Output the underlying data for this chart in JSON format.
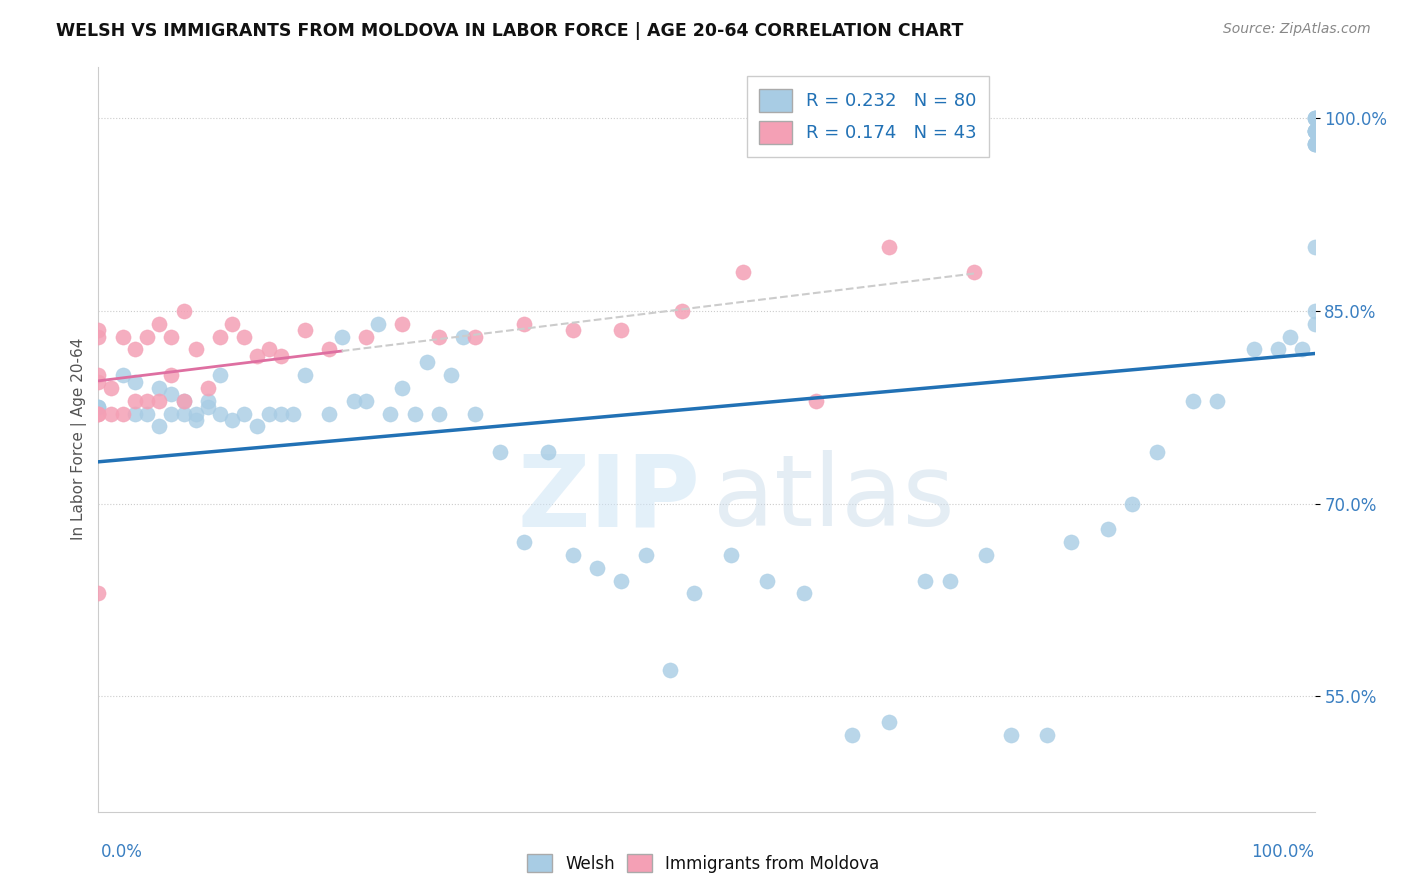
{
  "title": "WELSH VS IMMIGRANTS FROM MOLDOVA IN LABOR FORCE | AGE 20-64 CORRELATION CHART",
  "source": "Source: ZipAtlas.com",
  "ylabel": "In Labor Force | Age 20-64",
  "xlim": [
    0.0,
    1.0
  ],
  "ylim": [
    0.46,
    1.04
  ],
  "welsh_R": 0.232,
  "welsh_N": 80,
  "moldova_R": 0.174,
  "moldova_N": 43,
  "welsh_color": "#a8cce4",
  "moldova_color": "#f4a0b5",
  "trendline_welsh_color": "#2171b5",
  "trendline_moldova_color": "#de6fa1",
  "trendline_moldova_extended_color": "#cccccc",
  "watermark_zip_color": "#d6e8f5",
  "watermark_atlas_color": "#c8d8e8",
  "y_tick_positions": [
    0.55,
    0.7,
    0.85,
    1.0
  ],
  "y_tick_labels": [
    "55.0%",
    "70.0%",
    "85.0%",
    "100.0%"
  ],
  "welsh_x": [
    0.0,
    0.0,
    0.02,
    0.03,
    0.03,
    0.04,
    0.05,
    0.05,
    0.06,
    0.06,
    0.07,
    0.07,
    0.08,
    0.08,
    0.09,
    0.09,
    0.1,
    0.1,
    0.11,
    0.12,
    0.13,
    0.14,
    0.15,
    0.16,
    0.17,
    0.19,
    0.2,
    0.21,
    0.22,
    0.23,
    0.24,
    0.25,
    0.26,
    0.27,
    0.28,
    0.29,
    0.3,
    0.31,
    0.33,
    0.35,
    0.37,
    0.39,
    0.41,
    0.43,
    0.45,
    0.47,
    0.49,
    0.52,
    0.55,
    0.58,
    0.62,
    0.65,
    0.68,
    0.7,
    0.73,
    0.75,
    0.78,
    0.8,
    0.83,
    0.85,
    0.87,
    0.9,
    0.92,
    0.95,
    0.97,
    0.98,
    0.99,
    1.0,
    1.0,
    1.0,
    1.0,
    1.0,
    1.0,
    1.0,
    1.0,
    1.0,
    1.0,
    1.0,
    1.0,
    1.0
  ],
  "welsh_y": [
    0.775,
    0.775,
    0.8,
    0.77,
    0.795,
    0.77,
    0.76,
    0.79,
    0.77,
    0.785,
    0.77,
    0.78,
    0.765,
    0.77,
    0.775,
    0.78,
    0.77,
    0.8,
    0.765,
    0.77,
    0.76,
    0.77,
    0.77,
    0.77,
    0.8,
    0.77,
    0.83,
    0.78,
    0.78,
    0.84,
    0.77,
    0.79,
    0.77,
    0.81,
    0.77,
    0.8,
    0.83,
    0.77,
    0.74,
    0.67,
    0.74,
    0.66,
    0.65,
    0.64,
    0.66,
    0.57,
    0.63,
    0.66,
    0.64,
    0.63,
    0.52,
    0.53,
    0.64,
    0.64,
    0.66,
    0.52,
    0.52,
    0.67,
    0.68,
    0.7,
    0.74,
    0.78,
    0.78,
    0.82,
    0.82,
    0.83,
    0.82,
    0.84,
    0.9,
    0.85,
    0.98,
    0.98,
    0.98,
    0.99,
    0.99,
    0.99,
    0.99,
    1.0,
    1.0,
    1.0
  ],
  "moldova_x": [
    0.0,
    0.0,
    0.0,
    0.0,
    0.0,
    0.0,
    0.0,
    0.01,
    0.01,
    0.02,
    0.02,
    0.03,
    0.03,
    0.04,
    0.04,
    0.05,
    0.05,
    0.06,
    0.06,
    0.07,
    0.07,
    0.08,
    0.09,
    0.1,
    0.11,
    0.12,
    0.13,
    0.14,
    0.15,
    0.17,
    0.19,
    0.22,
    0.25,
    0.28,
    0.31,
    0.35,
    0.39,
    0.43,
    0.48,
    0.53,
    0.59,
    0.65,
    0.72
  ],
  "moldova_y": [
    0.77,
    0.77,
    0.795,
    0.8,
    0.83,
    0.835,
    0.63,
    0.77,
    0.79,
    0.77,
    0.83,
    0.78,
    0.82,
    0.78,
    0.83,
    0.78,
    0.84,
    0.8,
    0.83,
    0.78,
    0.85,
    0.82,
    0.79,
    0.83,
    0.84,
    0.83,
    0.815,
    0.82,
    0.815,
    0.835,
    0.82,
    0.83,
    0.84,
    0.83,
    0.83,
    0.84,
    0.835,
    0.835,
    0.85,
    0.88,
    0.78,
    0.9,
    0.88
  ]
}
